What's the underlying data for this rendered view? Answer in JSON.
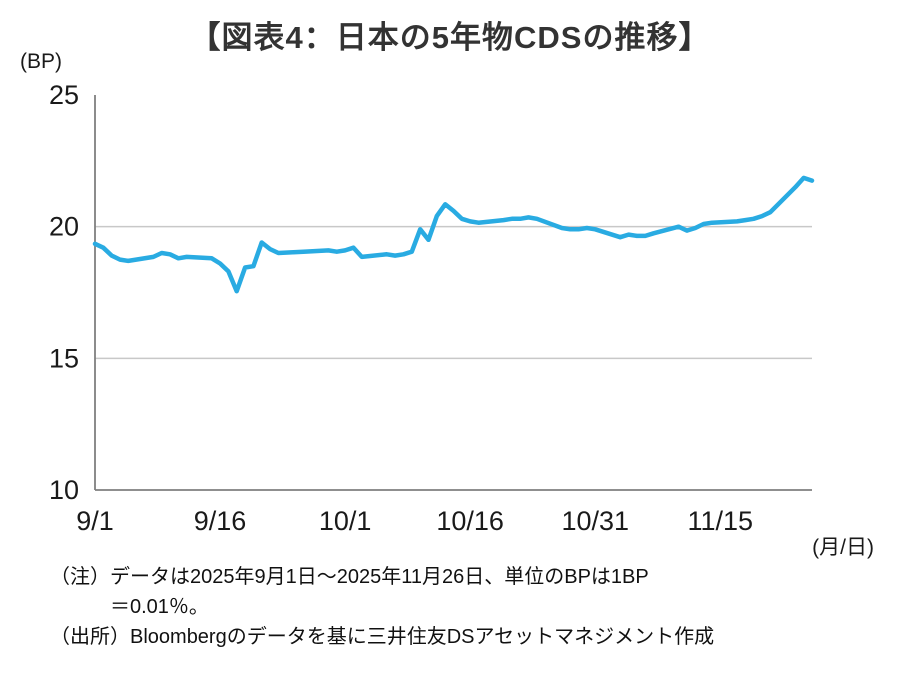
{
  "page": {
    "title": "【図表4：日本の5年物CDSの推移】",
    "y_axis_unit_label": "(BP)",
    "x_axis_unit_label": "(月/日)",
    "note_line1": "（注）データは2025年9月1日～2025年11月26日、単位のBPは1BP",
    "note_line2": "＝0.01％。",
    "source_line": "（出所）Bloombergのデータを基に三井住友DSアセットマネジメント作成"
  },
  "colors": {
    "line": "#29abe2",
    "grid": "#c8c8c8",
    "axis": "#7f7f7f",
    "tick_text": "#1a1a1a"
  },
  "chart_data": {
    "type": "line",
    "title": "日本の5年物CDSの推移",
    "ylabel": "BP",
    "ylim": [
      10,
      25
    ],
    "yticks": [
      10,
      15,
      20,
      25
    ],
    "grid": "horizontal-only",
    "legend": "none",
    "x_start_date": "2025/9/1",
    "x_end_date": "2025/11/26",
    "x_range_days": [
      0,
      86
    ],
    "xticks": [
      {
        "day": 0,
        "label": "9/1"
      },
      {
        "day": 15,
        "label": "9/16"
      },
      {
        "day": 30,
        "label": "10/1"
      },
      {
        "day": 45,
        "label": "10/16"
      },
      {
        "day": 60,
        "label": "10/31"
      },
      {
        "day": 75,
        "label": "11/15"
      }
    ],
    "series": [
      {
        "name": "日本5年物CDS（BP）",
        "points": [
          [
            0,
            19.35
          ],
          [
            1,
            19.2
          ],
          [
            2,
            18.9
          ],
          [
            3,
            18.75
          ],
          [
            4,
            18.7
          ],
          [
            7,
            18.85
          ],
          [
            8,
            19.0
          ],
          [
            9,
            18.95
          ],
          [
            10,
            18.8
          ],
          [
            11,
            18.85
          ],
          [
            14,
            18.8
          ],
          [
            15,
            18.6
          ],
          [
            16,
            18.3
          ],
          [
            17,
            17.55
          ],
          [
            18,
            18.45
          ],
          [
            19,
            18.5
          ],
          [
            20,
            19.4
          ],
          [
            21,
            19.15
          ],
          [
            22,
            19.0
          ],
          [
            25,
            19.05
          ],
          [
            28,
            19.1
          ],
          [
            29,
            19.05
          ],
          [
            30,
            19.1
          ],
          [
            31,
            19.2
          ],
          [
            32,
            18.85
          ],
          [
            35,
            18.95
          ],
          [
            36,
            18.9
          ],
          [
            37,
            18.95
          ],
          [
            38,
            19.05
          ],
          [
            39,
            19.9
          ],
          [
            40,
            19.5
          ],
          [
            41,
            20.4
          ],
          [
            42,
            20.85
          ],
          [
            43,
            20.6
          ],
          [
            44,
            20.3
          ],
          [
            45,
            20.2
          ],
          [
            46,
            20.15
          ],
          [
            49,
            20.25
          ],
          [
            50,
            20.3
          ],
          [
            51,
            20.3
          ],
          [
            52,
            20.35
          ],
          [
            53,
            20.3
          ],
          [
            56,
            19.95
          ],
          [
            57,
            19.9
          ],
          [
            58,
            19.9
          ],
          [
            59,
            19.95
          ],
          [
            60,
            19.9
          ],
          [
            63,
            19.6
          ],
          [
            64,
            19.7
          ],
          [
            65,
            19.65
          ],
          [
            66,
            19.65
          ],
          [
            67,
            19.75
          ],
          [
            70,
            20.0
          ],
          [
            71,
            19.85
          ],
          [
            72,
            19.95
          ],
          [
            73,
            20.1
          ],
          [
            74,
            20.15
          ],
          [
            77,
            20.2
          ],
          [
            78,
            20.25
          ],
          [
            79,
            20.3
          ],
          [
            80,
            20.4
          ],
          [
            81,
            20.55
          ],
          [
            84,
            21.5
          ],
          [
            85,
            21.85
          ],
          [
            86,
            21.75
          ]
        ]
      }
    ]
  }
}
